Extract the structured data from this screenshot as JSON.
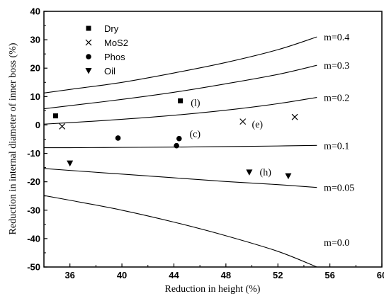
{
  "chart_data": {
    "type": "scatter",
    "xlabel": "Reduction in height (%)",
    "ylabel": "Reduction in internal diameter of inner boss (%)",
    "xlim": [
      34,
      60
    ],
    "ylim": [
      -50,
      40
    ],
    "x_ticks": [
      36,
      40,
      44,
      48,
      52,
      56,
      60
    ],
    "y_ticks": [
      -50,
      -40,
      -30,
      -20,
      -10,
      0,
      10,
      20,
      30,
      40
    ],
    "grid": false,
    "legend": "top-left",
    "series": [
      {
        "name": "Dry",
        "marker": "square",
        "points": [
          [
            34.9,
            3.2
          ],
          [
            44.5,
            8.5
          ]
        ]
      },
      {
        "name": "MoS2",
        "marker": "x",
        "points": [
          [
            35.4,
            -0.5
          ],
          [
            49.3,
            1.2
          ],
          [
            53.3,
            2.8
          ]
        ]
      },
      {
        "name": "Phos",
        "marker": "circle",
        "points": [
          [
            39.7,
            -4.6
          ],
          [
            44.2,
            -7.3
          ],
          [
            44.4,
            -4.8
          ]
        ]
      },
      {
        "name": "Oil",
        "marker": "triangle-down",
        "points": [
          [
            36.0,
            -13.5
          ],
          [
            49.8,
            -16.7
          ],
          [
            52.8,
            -18.0
          ]
        ]
      }
    ],
    "curves": [
      {
        "name": "m=0.4",
        "points": [
          [
            33.6,
            11.0
          ],
          [
            36,
            12.5
          ],
          [
            40,
            15.0
          ],
          [
            44,
            18.3
          ],
          [
            48,
            22.0
          ],
          [
            52,
            26.5
          ],
          [
            55,
            31.0
          ]
        ]
      },
      {
        "name": "m=0.3",
        "points": [
          [
            33.6,
            5.5
          ],
          [
            36,
            6.8
          ],
          [
            40,
            9.0
          ],
          [
            44,
            11.5
          ],
          [
            48,
            14.5
          ],
          [
            52,
            17.8
          ],
          [
            55,
            21.0
          ]
        ]
      },
      {
        "name": "m=0.2",
        "points": [
          [
            33.6,
            0.2
          ],
          [
            36,
            0.8
          ],
          [
            40,
            2.0
          ],
          [
            44,
            3.4
          ],
          [
            48,
            5.2
          ],
          [
            52,
            7.5
          ],
          [
            55,
            9.7
          ]
        ]
      },
      {
        "name": "m=0.1",
        "points": [
          [
            33.6,
            -8.0
          ],
          [
            36,
            -8.0
          ],
          [
            40,
            -7.9
          ],
          [
            44,
            -7.8
          ],
          [
            48,
            -7.6
          ],
          [
            52,
            -7.4
          ],
          [
            55,
            -7.2
          ]
        ]
      },
      {
        "name": "m=0.05",
        "points": [
          [
            33.6,
            -15.2
          ],
          [
            36,
            -16.0
          ],
          [
            40,
            -17.3
          ],
          [
            44,
            -18.6
          ],
          [
            48,
            -19.9
          ],
          [
            52,
            -21.0
          ],
          [
            55,
            -22.0
          ]
        ]
      },
      {
        "name": "m=0.0",
        "points": [
          [
            33.6,
            -24.5
          ],
          [
            36,
            -26.5
          ],
          [
            40,
            -30.0
          ],
          [
            44,
            -34.2
          ],
          [
            48,
            -39.0
          ],
          [
            52,
            -44.5
          ],
          [
            55,
            -50.0
          ]
        ]
      }
    ],
    "annotations": [
      {
        "text": "(l)",
        "x": 45.3,
        "y": 8.0
      },
      {
        "text": "(e)",
        "x": 50.0,
        "y": 0.3
      },
      {
        "text": "(c)",
        "x": 45.2,
        "y": -3.0
      },
      {
        "text": "(h)",
        "x": 50.6,
        "y": -16.5
      }
    ]
  }
}
